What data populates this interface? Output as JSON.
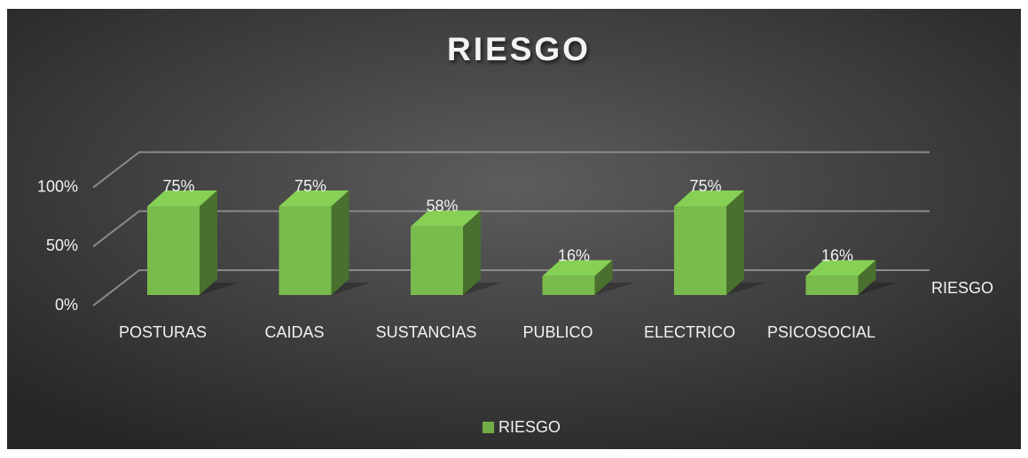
{
  "chart_data": {
    "type": "bar3d",
    "title": "RIESGO",
    "categories": [
      "POSTURAS",
      "CAIDAS",
      "SUSTANCIAS",
      "PUBLICO",
      "ELECTRICO",
      "PSICOSOCIAL"
    ],
    "series": [
      {
        "name": "RIESGO",
        "color": "#70ad47",
        "values": [
          75,
          75,
          58,
          16,
          75,
          16
        ],
        "value_labels": [
          "75%",
          "75%",
          "58%",
          "16%",
          "75%",
          "16%"
        ]
      }
    ],
    "ylim": [
      0,
      100
    ],
    "yticks": [
      {
        "value": 0,
        "label": "0%"
      },
      {
        "value": 50,
        "label": "50%"
      },
      {
        "value": 100,
        "label": "100%"
      }
    ],
    "grid": true,
    "legend": "bottom"
  }
}
